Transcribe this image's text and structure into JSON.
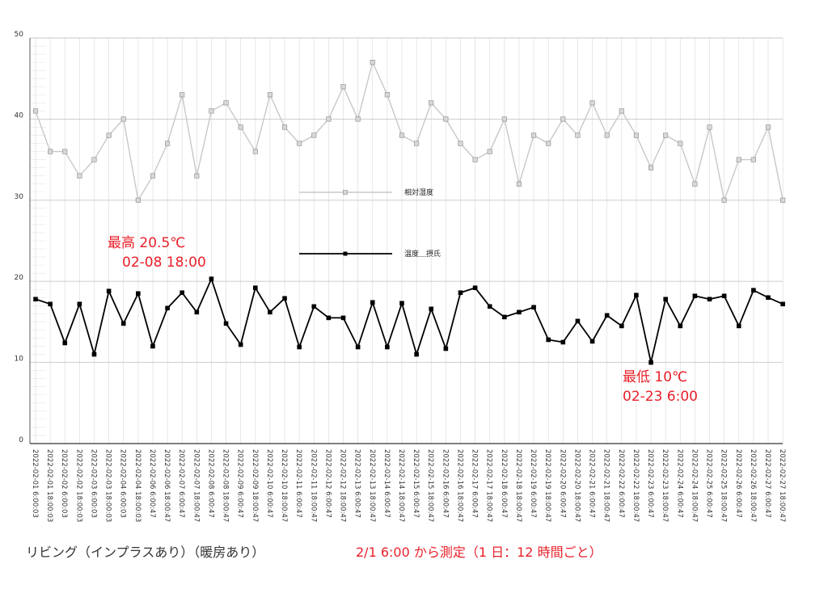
{
  "captions": {
    "left": "リビング（インプラスあり）（暖房あり）",
    "right": "2/1 6:00 から測定（1 日：12 時間ごと）"
  },
  "annotations": {
    "max_line1": "最高 20.5℃",
    "max_line2": "02-08 18:00",
    "min_line1": "最低 10℃",
    "min_line2": "02-23 6:00"
  },
  "colors": {
    "humidity": "#c8c8c8",
    "temperature": "#000000",
    "annotation": "#e8202a",
    "grid": "#cccccc"
  },
  "chart_data": {
    "type": "line",
    "ylim": [
      0,
      50
    ],
    "yticks": [
      0,
      10,
      20,
      30,
      40,
      50
    ],
    "grid": true,
    "legend": "center",
    "categories": [
      "2022-02-01 6:00:03",
      "2022-02-01 18:00:03",
      "2022-02-02 6:00:03",
      "2022-02-02 18:00:03",
      "2022-02-03 6:00:03",
      "2022-02-03 18:00:03",
      "2022-02-04 6:00:03",
      "2022-02-04 18:00:03",
      "2022-02-06 6:00:47",
      "2022-02-06 18:00:47",
      "2022-02-07 6:00:47",
      "2022-02-07 18:00:47",
      "2022-02-08 6:00:47",
      "2022-02-08 18:00:47",
      "2022-02-09 6:00:47",
      "2022-02-09 18:00:47",
      "2022-02-10 6:00:47",
      "2022-02-10 18:00:47",
      "2022-02-11 6:00:47",
      "2022-02-11 18:00:47",
      "2022-02-12 6:00:47",
      "2022-02-12 18:00:47",
      "2022-02-13 6:00:47",
      "2022-02-13 18:00:47",
      "2022-02-14 6:00:47",
      "2022-02-14 18:00:47",
      "2022-02-15 6:00:47",
      "2022-02-15 18:00:47",
      "2022-02-16 6:00:47",
      "2022-02-16 18:00:47",
      "2022-02-17 6:00:47",
      "2022-02-17 18:00:47",
      "2022-02-18 6:00:47",
      "2022-02-18 18:00:47",
      "2022-02-19 6:00:47",
      "2022-02-19 18:00:47",
      "2022-02-20 6:00:47",
      "2022-02-20 18:00:47",
      "2022-02-21 6:00:47",
      "2022-02-21 18:00:47",
      "2022-02-22 6:00:47",
      "2022-02-22 18:00:47",
      "2022-02-23 6:00:47",
      "2022-02-23 18:00:47",
      "2022-02-24 6:00:47",
      "2022-02-24 18:00:47",
      "2022-02-25 6:00:47",
      "2022-02-25 18:00:47",
      "2022-02-26 6:00:47",
      "2022-02-26 18:00:47",
      "2022-02-27 6:00:47",
      "2022-02-27 18:00:47"
    ],
    "series": [
      {
        "name": "相対湿度",
        "values": [
          41,
          36,
          36,
          33,
          35,
          38,
          40,
          30,
          33,
          37,
          43,
          33,
          41,
          42,
          39,
          36,
          43,
          39,
          37,
          38,
          40,
          44,
          40,
          47,
          43,
          38,
          37,
          42,
          40,
          37,
          35,
          36,
          40,
          32,
          38,
          37,
          40,
          38,
          42,
          38,
          41,
          38,
          34,
          38,
          37,
          32,
          39,
          30,
          35,
          35,
          39,
          30
        ]
      },
      {
        "name": "温度＿摂氏",
        "values": [
          17.8,
          17.2,
          12.4,
          17.2,
          11.0,
          18.8,
          14.8,
          18.5,
          12.0,
          16.7,
          18.6,
          16.2,
          20.3,
          14.8,
          12.2,
          19.2,
          16.2,
          17.9,
          11.9,
          16.9,
          15.5,
          15.5,
          11.9,
          17.4,
          11.9,
          17.3,
          11.0,
          16.6,
          11.7,
          18.6,
          19.2,
          16.9,
          15.6,
          16.2,
          16.8,
          12.8,
          12.5,
          15.1,
          12.6,
          15.8,
          14.5,
          18.3,
          10.0,
          17.8,
          14.5,
          18.2,
          17.8,
          18.2,
          14.5,
          18.9,
          18.0,
          17.2
        ]
      }
    ]
  }
}
